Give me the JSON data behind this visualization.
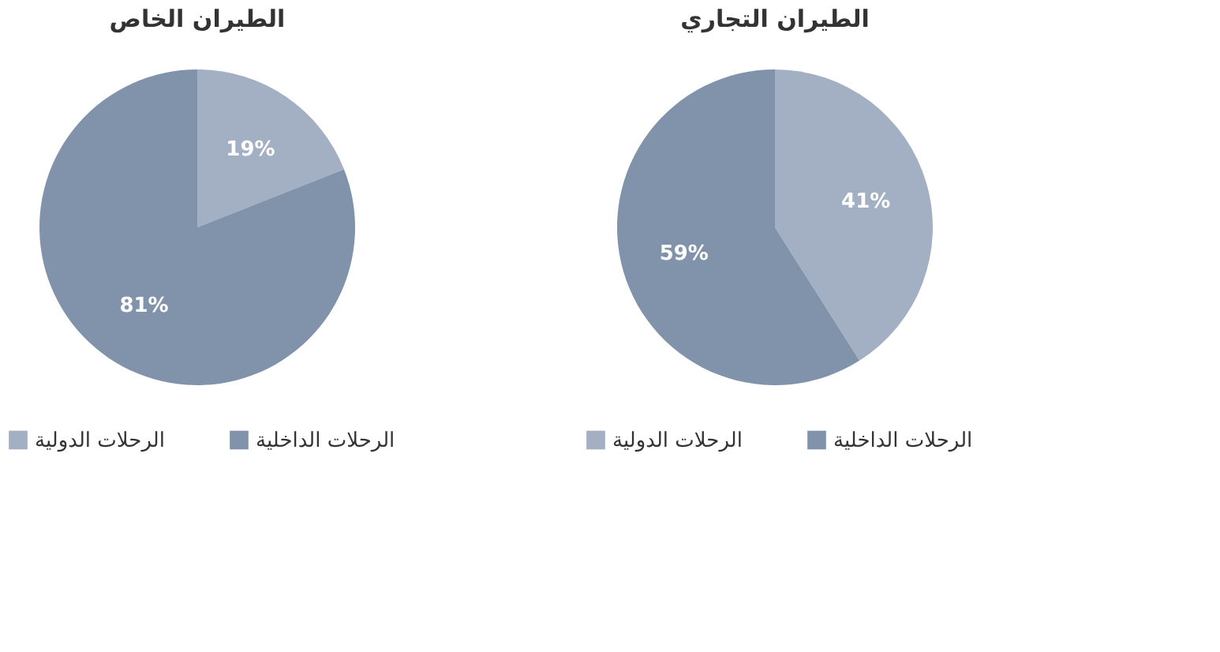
{
  "chart_data": [
    {
      "type": "pie",
      "title": "الطيران التجاري",
      "categories": [
        "الرحلات الدولية",
        "الرحلات الداخلية"
      ],
      "values": [
        41,
        59
      ],
      "colors": [
        "#a3afc2",
        "#8193ab"
      ],
      "value_labels": [
        "41%",
        "59%"
      ],
      "legend": "bottom"
    },
    {
      "type": "pie",
      "title": "الطيران الخاص",
      "categories": [
        "الرحلات الدولية",
        "الرحلات الداخلية"
      ],
      "values": [
        19,
        81
      ],
      "colors": [
        "#a3afc2",
        "#8193ab"
      ],
      "value_labels": [
        "19%",
        "81%"
      ],
      "legend": "bottom"
    }
  ]
}
